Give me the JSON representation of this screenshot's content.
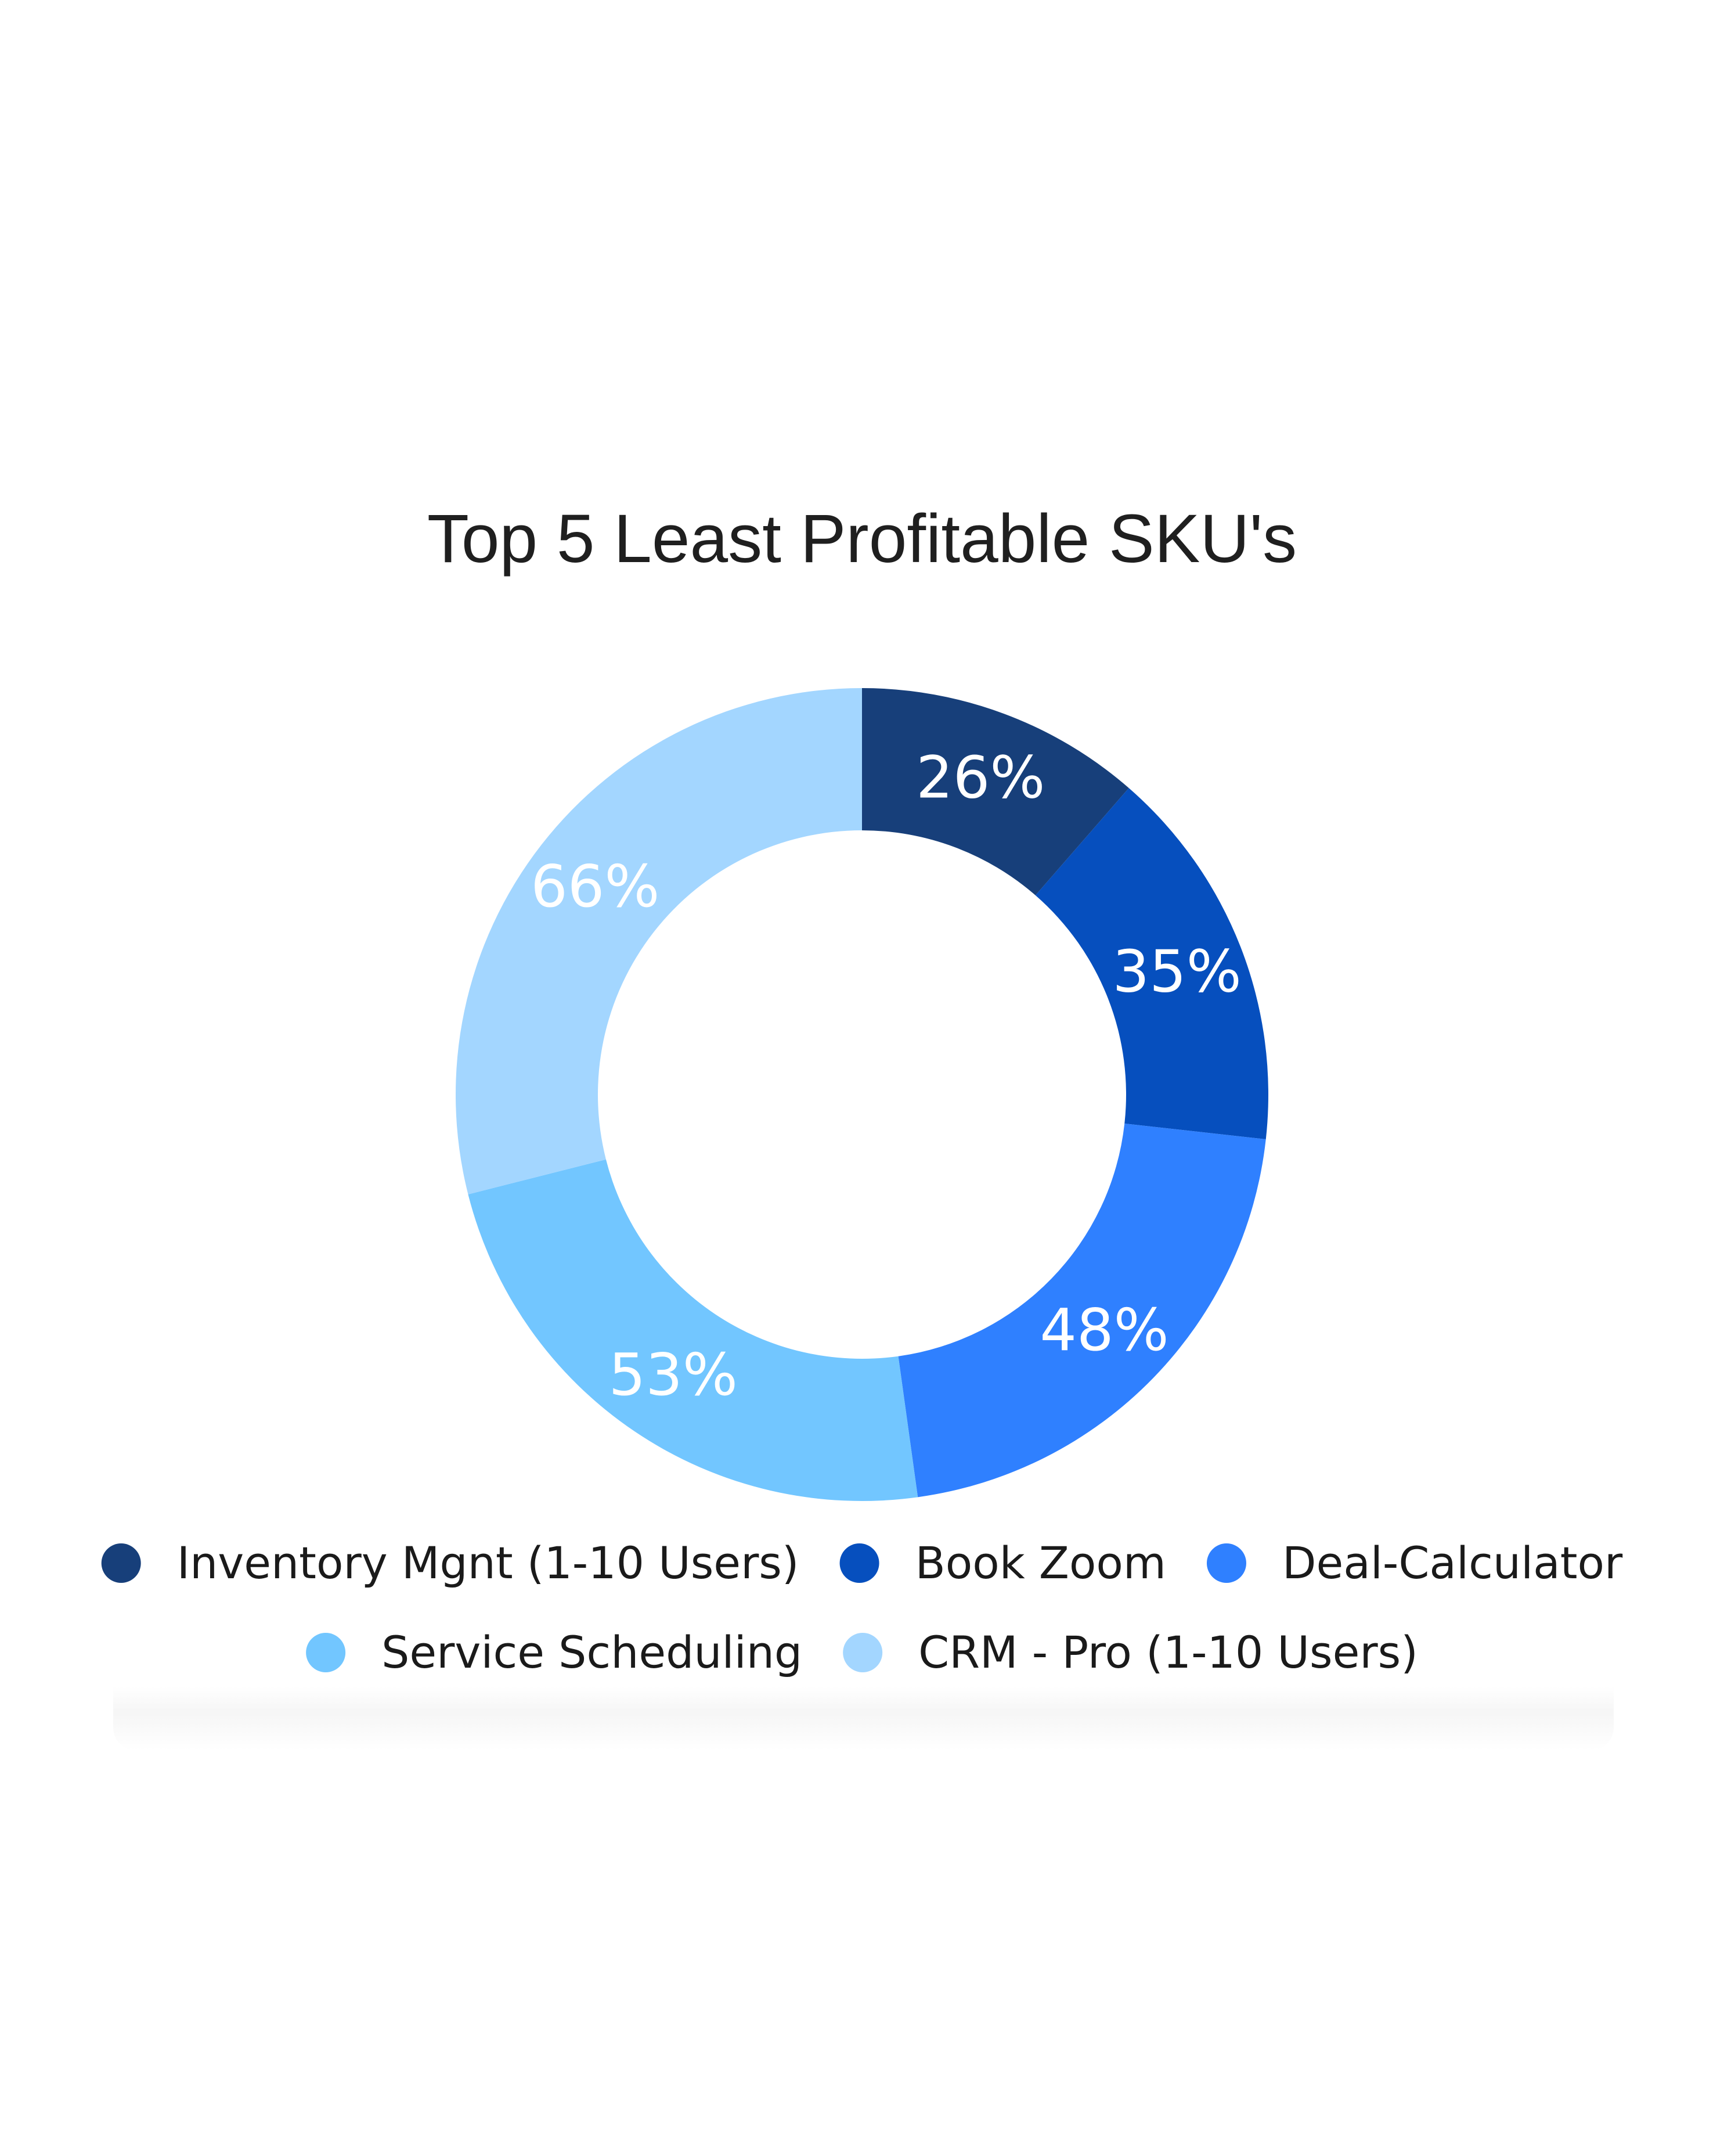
{
  "chart_data": {
    "type": "pie",
    "variant": "donut",
    "title": "Top 5 Least Profitable SKU's",
    "categories": [
      "Inventory Mgnt (1-10 Users)",
      "Book Zoom",
      "Deal-Calculator",
      "Service Scheduling",
      "CRM - Pro (1-10 Users)"
    ],
    "values": [
      26,
      35,
      48,
      53,
      66
    ],
    "labels": [
      "26%",
      "35%",
      "48%",
      "53%",
      "66%"
    ],
    "colors": [
      "#173f7a",
      "#064fbe",
      "#2f80ff",
      "#72c6ff",
      "#a3d6ff"
    ],
    "legend_position": "bottom",
    "start_angle_deg": 0,
    "direction": "clockwise"
  }
}
